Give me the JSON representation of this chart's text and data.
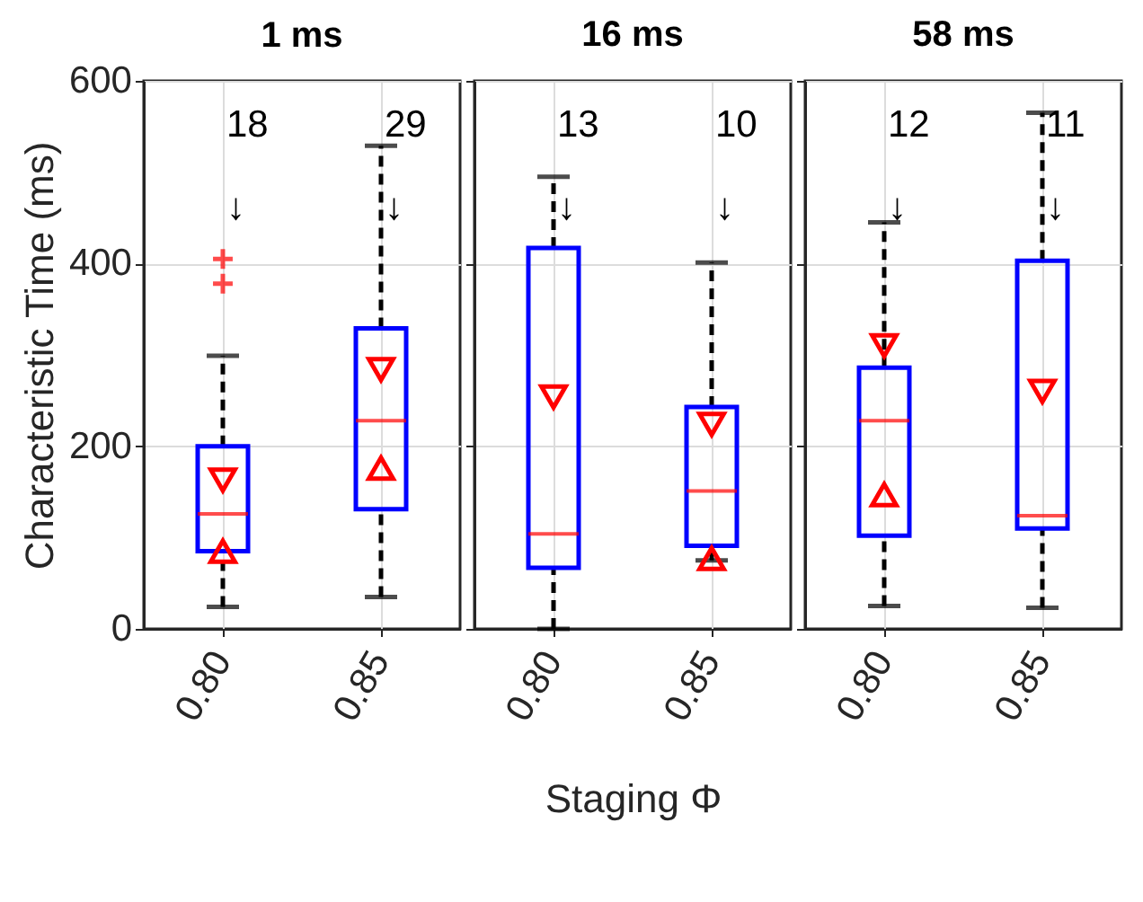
{
  "chart_data": [
    {
      "type": "box",
      "title": "1 ms",
      "ylabel": "Characteristic Time (ms)",
      "categories": [
        "0.80",
        "0.85"
      ],
      "boxes": [
        {
          "low": 24,
          "q1": 85,
          "median": 126,
          "q3": 200,
          "high": 299,
          "outliers": [
            405,
            378
          ]
        },
        {
          "low": 35,
          "q1": 131,
          "median": 228,
          "q3": 329,
          "high": 529
        }
      ],
      "series": [
        {
          "type": "scatter",
          "marker": "triangle-down",
          "color": "#ff0000",
          "x": [
            "0.80",
            "0.85"
          ],
          "values": [
            163,
            284
          ]
        },
        {
          "type": "scatter",
          "marker": "triangle-up",
          "color": "#ff0000",
          "x": [
            "0.80",
            "0.85"
          ],
          "values": [
            85,
            176
          ]
        }
      ],
      "annotations": [
        "18\n↓",
        "29\n↓"
      ],
      "ylim": [
        0,
        600
      ],
      "yticks": [
        0,
        200,
        400,
        600
      ],
      "grid": true
    },
    {
      "type": "box",
      "title": "16 ms",
      "xlabel": "Staging Φ",
      "categories": [
        "0.80",
        "0.85"
      ],
      "boxes": [
        {
          "low": 0,
          "q1": 67,
          "median": 104,
          "q3": 417,
          "high": 495
        },
        {
          "low": 75,
          "q1": 91,
          "median": 151,
          "q3": 243,
          "high": 401
        }
      ],
      "series": [
        {
          "type": "scatter",
          "marker": "triangle-down",
          "color": "#ff0000",
          "x": [
            "0.80",
            "0.85"
          ],
          "values": [
            254,
            224
          ]
        },
        {
          "type": "scatter",
          "marker": "triangle-up",
          "color": "#ff0000",
          "x": [
            "0.80",
            "0.85"
          ],
          "values": [
            null,
            77
          ]
        }
      ],
      "annotations": [
        "13\n↓",
        "10\n↓"
      ],
      "ylim": [
        0,
        600
      ],
      "yticks": [
        0,
        200,
        400,
        600
      ],
      "grid": true,
      "tick_labels": "x"
    },
    {
      "type": "box",
      "title": "58 ms",
      "categories": [
        "0.80",
        "0.85"
      ],
      "boxes": [
        {
          "low": 25,
          "q1": 102,
          "median": 228,
          "q3": 286,
          "high": 445
        },
        {
          "low": 23,
          "q1": 110,
          "median": 124,
          "q3": 403,
          "high": 565
        }
      ],
      "series": [
        {
          "type": "scatter",
          "marker": "triangle-down",
          "color": "#ff0000",
          "x": [
            "0.80",
            "0.85"
          ],
          "values": [
            310,
            260
          ]
        },
        {
          "type": "scatter",
          "marker": "triangle-up",
          "color": "#ff0000",
          "x": [
            "0.80",
            "0.85"
          ],
          "values": [
            147,
            null
          ]
        }
      ],
      "annotations": [
        "12\n↓",
        "11\n↓"
      ],
      "ylim": [
        0,
        600
      ],
      "yticks": [
        0,
        200,
        400,
        600
      ],
      "grid": true,
      "tick_labels": "x"
    }
  ]
}
